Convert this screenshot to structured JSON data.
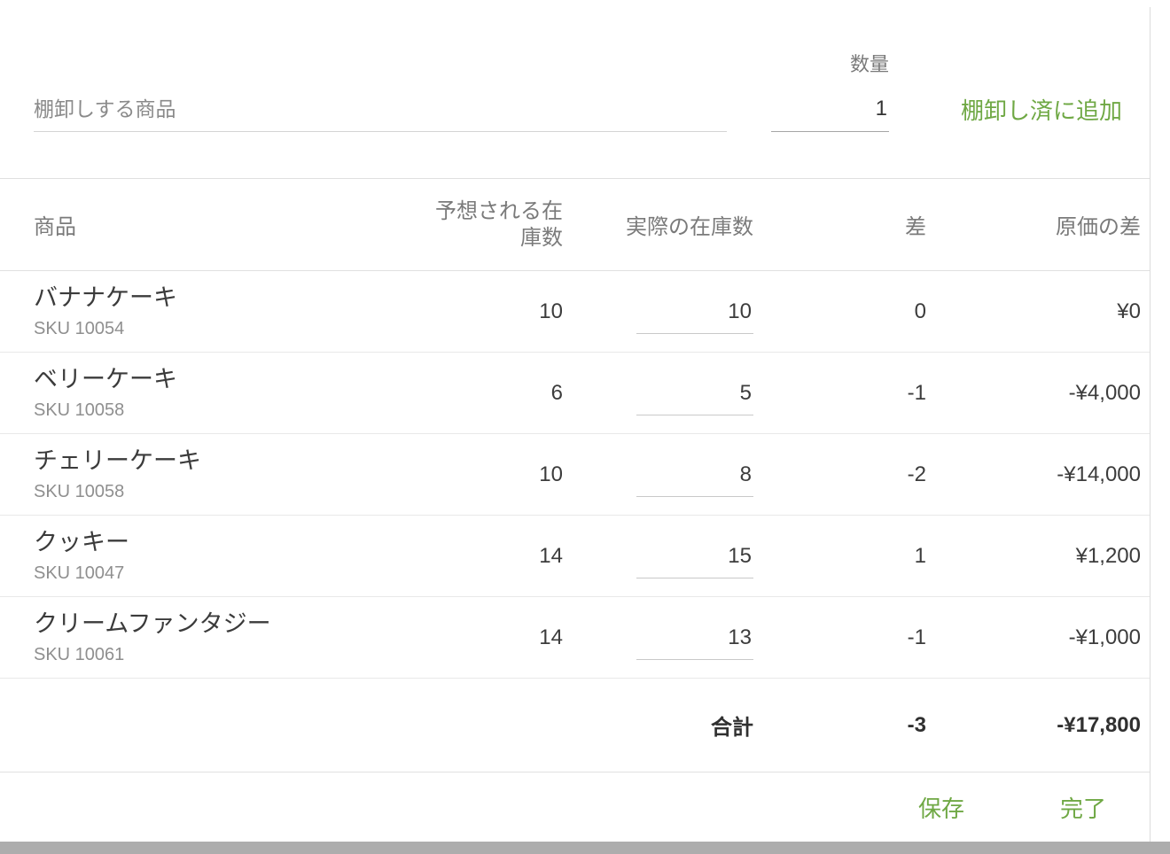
{
  "colors": {
    "accent_green": "#6FA844",
    "divider": "#e0e0e0",
    "text_dark": "#3c3c3c",
    "text_gray": "#7a7a7a",
    "bottom_strip": "#adadad"
  },
  "form": {
    "search": {
      "placeholder": "棚卸しする商品",
      "value": ""
    },
    "quantity": {
      "label": "数量",
      "value": "1"
    },
    "add_button_label": "棚卸し済に追加"
  },
  "table": {
    "headers": {
      "product": "商品",
      "expected": "予想される在庫数",
      "actual": "実際の在庫数",
      "diff": "差",
      "cost_diff": "原価の差"
    },
    "rows": [
      {
        "name": "バナナケーキ",
        "sku": "SKU 10054",
        "expected": "10",
        "actual": "10",
        "diff": "0",
        "cost_diff": "¥0"
      },
      {
        "name": "ベリーケーキ",
        "sku": "SKU 10058",
        "expected": "6",
        "actual": "5",
        "diff": "-1",
        "cost_diff": "-¥4,000"
      },
      {
        "name": "チェリーケーキ",
        "sku": "SKU 10058",
        "expected": "10",
        "actual": "8",
        "diff": "-2",
        "cost_diff": "-¥14,000"
      },
      {
        "name": "クッキー",
        "sku": "SKU 10047",
        "expected": "14",
        "actual": "15",
        "diff": "1",
        "cost_diff": "¥1,200"
      },
      {
        "name": "クリームファンタジー",
        "sku": "SKU 10061",
        "expected": "14",
        "actual": "13",
        "diff": "-1",
        "cost_diff": "-¥1,000"
      }
    ],
    "totals": {
      "label": "合計",
      "diff": "-3",
      "cost_diff": "-¥17,800"
    }
  },
  "footer": {
    "save_label": "保存",
    "done_label": "完了"
  }
}
